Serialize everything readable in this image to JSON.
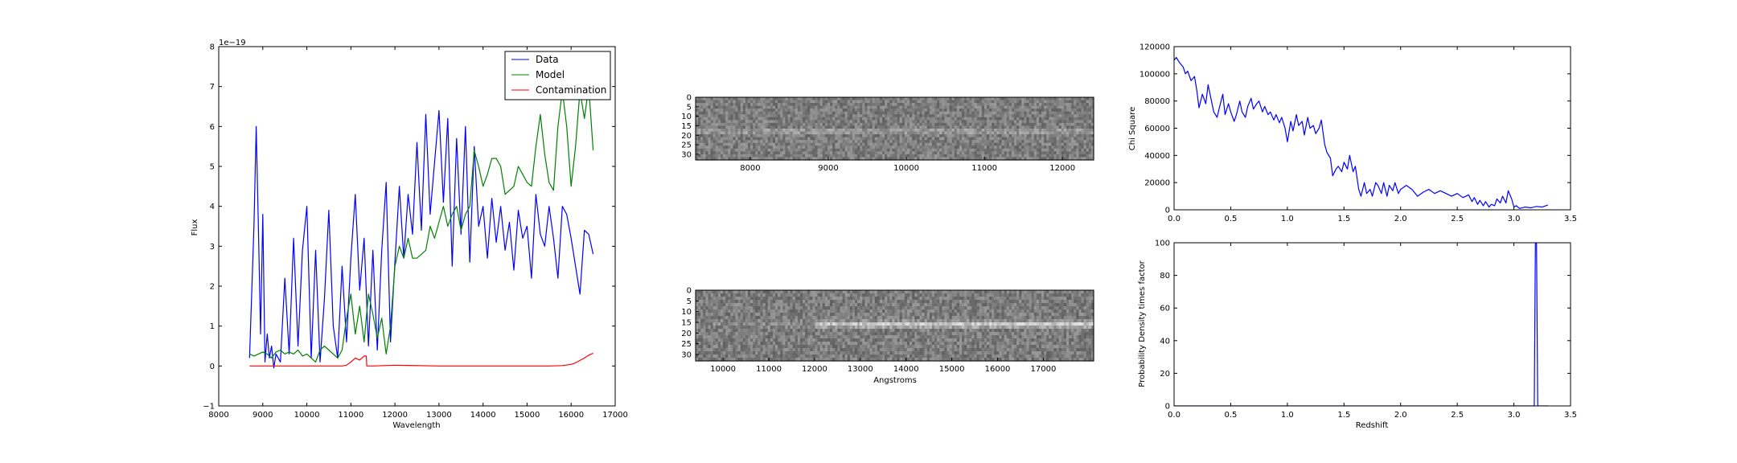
{
  "chart_data": [
    {
      "id": "spectrum",
      "type": "line",
      "xlabel": "Wavelength",
      "ylabel": "Flux",
      "offset_text": "1e−19",
      "xlim": [
        8000,
        17000
      ],
      "ylim": [
        -1,
        8
      ],
      "xticks": [
        8000,
        9000,
        10000,
        11000,
        12000,
        13000,
        14000,
        15000,
        16000,
        17000
      ],
      "yticks": [
        -1,
        0,
        1,
        2,
        3,
        4,
        5,
        6,
        7,
        8
      ],
      "legend": {
        "position": "top-right",
        "entries": [
          "Data",
          "Model",
          "Contamination"
        ]
      },
      "series": [
        {
          "name": "Data",
          "color": "#0000ff",
          "x": [
            8700,
            8800,
            8850,
            8900,
            8950,
            9000,
            9050,
            9100,
            9150,
            9200,
            9250,
            9300,
            9400,
            9500,
            9600,
            9700,
            9800,
            9900,
            10000,
            10100,
            10200,
            10300,
            10400,
            10500,
            10600,
            10700,
            10800,
            10900,
            11000,
            11100,
            11200,
            11300,
            11400,
            11500,
            11600,
            11700,
            11800,
            11900,
            12000,
            12100,
            12200,
            12300,
            12400,
            12500,
            12600,
            12700,
            12800,
            12900,
            13000,
            13100,
            13200,
            13300,
            13400,
            13500,
            13600,
            13700,
            13800,
            13900,
            14000,
            14100,
            14200,
            14300,
            14400,
            14500,
            14600,
            14700,
            14800,
            14900,
            15000,
            15100,
            15200,
            15300,
            15400,
            15500,
            15600,
            15700,
            15800,
            15900,
            16000,
            16100,
            16200,
            16300,
            16400,
            16500
          ],
          "y": [
            0.2,
            3.5,
            6.0,
            3.5,
            0.8,
            3.8,
            0.1,
            0.8,
            0.2,
            0.5,
            -0.05,
            0.3,
            0.1,
            2.2,
            0.3,
            3.2,
            0.5,
            2.9,
            4.0,
            0.2,
            2.9,
            0.1,
            1.7,
            3.9,
            1.0,
            0.2,
            2.5,
            0.6,
            2.7,
            4.3,
            1.9,
            3.2,
            0.5,
            2.9,
            0.4,
            2.9,
            4.6,
            0.6,
            2.6,
            4.5,
            2.7,
            4.3,
            3.3,
            5.6,
            3.4,
            6.3,
            3.8,
            5.1,
            6.4,
            4.1,
            6.2,
            2.5,
            5.7,
            3.3,
            6.0,
            2.6,
            5.5,
            3.5,
            4.0,
            2.7,
            4.2,
            3.1,
            4.0,
            2.9,
            3.6,
            2.4,
            3.9,
            3.2,
            3.5,
            2.2,
            4.3,
            3.3,
            3.0,
            4.0,
            3.2,
            2.2,
            4.0,
            3.8,
            3.2,
            2.5,
            1.8,
            3.4,
            3.3,
            2.8
          ]
        },
        {
          "name": "Model",
          "color": "#008000",
          "x": [
            8700,
            8800,
            8900,
            9000,
            9100,
            9200,
            9300,
            9400,
            9500,
            9600,
            9700,
            9800,
            9900,
            10000,
            10100,
            10200,
            10300,
            10400,
            10500,
            10600,
            10700,
            10800,
            10900,
            11000,
            11100,
            11200,
            11300,
            11400,
            11500,
            11600,
            11700,
            11800,
            11900,
            12000,
            12100,
            12200,
            12300,
            12400,
            12500,
            12600,
            12700,
            12800,
            12900,
            13000,
            13100,
            13200,
            13300,
            13400,
            13500,
            13600,
            13700,
            13800,
            13900,
            14000,
            14100,
            14200,
            14300,
            14400,
            14500,
            14600,
            14700,
            14800,
            14900,
            15000,
            15100,
            15200,
            15300,
            15400,
            15500,
            15600,
            15700,
            15800,
            15900,
            16000,
            16100,
            16200,
            16300,
            16400,
            16500
          ],
          "y": [
            0.3,
            0.25,
            0.3,
            0.35,
            0.3,
            0.2,
            0.35,
            0.4,
            0.3,
            0.35,
            0.3,
            0.4,
            0.25,
            0.3,
            0.2,
            0.1,
            0.4,
            0.5,
            0.4,
            0.3,
            0.2,
            0.4,
            1.2,
            1.8,
            0.8,
            1.5,
            0.6,
            1.8,
            1.3,
            0.7,
            1.2,
            0.3,
            1.0,
            2.5,
            3.0,
            2.7,
            3.2,
            2.7,
            2.7,
            2.8,
            2.9,
            3.5,
            3.2,
            3.6,
            4.0,
            3.5,
            3.8,
            4.0,
            3.4,
            3.8,
            4.0,
            5.4,
            5.0,
            4.5,
            4.8,
            5.2,
            5.2,
            5.0,
            4.3,
            4.4,
            4.5,
            5.0,
            4.8,
            4.6,
            4.5,
            5.5,
            6.3,
            5.3,
            4.6,
            4.4,
            6.0,
            6.9,
            6.0,
            4.5,
            5.5,
            6.9,
            6.2,
            7.0,
            5.4
          ]
        },
        {
          "name": "Contamination",
          "color": "#ff0000",
          "x": [
            8700,
            9000,
            9500,
            10000,
            10500,
            10800,
            10900,
            11000,
            11100,
            11200,
            11300,
            11350,
            11360,
            11500,
            12000,
            13000,
            14000,
            15000,
            15500,
            15800,
            16000,
            16100,
            16200,
            16300,
            16400,
            16500
          ],
          "y": [
            0.0,
            0.0,
            0.0,
            0.0,
            0.0,
            0.0,
            0.02,
            0.1,
            0.2,
            0.15,
            0.25,
            0.25,
            0.0,
            0.0,
            0.02,
            0.0,
            0.0,
            0.0,
            0.0,
            0.01,
            0.04,
            0.08,
            0.14,
            0.2,
            0.27,
            0.32
          ]
        }
      ]
    },
    {
      "id": "spectrum_2d_top",
      "type": "heatmap",
      "xlim": [
        7300,
        12400
      ],
      "ylim": [
        33,
        0
      ],
      "xticks": [
        8000,
        9000,
        10000,
        11000,
        12000
      ],
      "yticks": [
        0,
        5,
        10,
        15,
        20,
        25,
        30
      ],
      "trace_row": 18
    },
    {
      "id": "spectrum_2d_bottom",
      "type": "heatmap",
      "xlabel": "Angstroms",
      "xlim": [
        9400,
        18100
      ],
      "ylim": [
        33,
        0
      ],
      "xticks": [
        10000,
        11000,
        12000,
        13000,
        14000,
        15000,
        16000,
        17000
      ],
      "yticks": [
        0,
        5,
        10,
        15,
        20,
        25,
        30
      ],
      "trace_row": 16,
      "trace_start": 12000
    },
    {
      "id": "chi_square",
      "type": "line",
      "ylabel": "Chi Square",
      "xlim": [
        0,
        3.5
      ],
      "ylim": [
        0,
        120000
      ],
      "xticks": [
        0.0,
        0.5,
        1.0,
        1.5,
        2.0,
        2.5,
        3.0,
        3.5
      ],
      "xticklabels": [
        "0.0",
        "0.5",
        "1.0",
        "1.5",
        "2.0",
        "2.5",
        "3.0",
        "3.5"
      ],
      "yticks": [
        0,
        20000,
        40000,
        60000,
        80000,
        100000,
        120000
      ],
      "series": [
        {
          "color": "#0000ff",
          "x": [
            0.0,
            0.02,
            0.05,
            0.08,
            0.1,
            0.12,
            0.15,
            0.18,
            0.2,
            0.22,
            0.25,
            0.28,
            0.3,
            0.33,
            0.35,
            0.38,
            0.4,
            0.43,
            0.45,
            0.48,
            0.5,
            0.53,
            0.55,
            0.58,
            0.6,
            0.63,
            0.65,
            0.68,
            0.7,
            0.73,
            0.75,
            0.78,
            0.8,
            0.83,
            0.85,
            0.88,
            0.9,
            0.93,
            0.95,
            0.98,
            1.0,
            1.03,
            1.05,
            1.08,
            1.1,
            1.13,
            1.15,
            1.18,
            1.2,
            1.23,
            1.25,
            1.28,
            1.3,
            1.33,
            1.35,
            1.38,
            1.4,
            1.43,
            1.45,
            1.48,
            1.5,
            1.53,
            1.55,
            1.58,
            1.6,
            1.63,
            1.65,
            1.68,
            1.7,
            1.73,
            1.75,
            1.78,
            1.8,
            1.83,
            1.85,
            1.88,
            1.9,
            1.93,
            1.95,
            1.98,
            2.0,
            2.05,
            2.1,
            2.15,
            2.2,
            2.25,
            2.3,
            2.35,
            2.4,
            2.45,
            2.5,
            2.55,
            2.6,
            2.63,
            2.65,
            2.68,
            2.7,
            2.73,
            2.75,
            2.78,
            2.8,
            2.83,
            2.85,
            2.88,
            2.9,
            2.93,
            2.95,
            2.98,
            3.0,
            3.02,
            3.05,
            3.1,
            3.15,
            3.2,
            3.25,
            3.3
          ],
          "y": [
            110000,
            112000,
            108000,
            105000,
            100000,
            102000,
            95000,
            98000,
            88000,
            75000,
            85000,
            78000,
            92000,
            80000,
            72000,
            68000,
            75000,
            85000,
            70000,
            78000,
            72000,
            65000,
            70000,
            80000,
            72000,
            68000,
            76000,
            82000,
            74000,
            78000,
            80000,
            72000,
            76000,
            70000,
            72000,
            66000,
            70000,
            64000,
            68000,
            60000,
            50000,
            65000,
            58000,
            70000,
            62000,
            65000,
            55000,
            68000,
            60000,
            62000,
            56000,
            60000,
            66000,
            48000,
            42000,
            38000,
            25000,
            30000,
            32000,
            28000,
            35000,
            30000,
            40000,
            28000,
            32000,
            15000,
            10000,
            20000,
            12000,
            15000,
            10000,
            20000,
            18000,
            12000,
            20000,
            10000,
            18000,
            14000,
            20000,
            12000,
            15000,
            18000,
            15000,
            10000,
            13000,
            15000,
            12000,
            14000,
            12000,
            10000,
            12000,
            9000,
            11000,
            6000,
            9000,
            4000,
            7000,
            3000,
            6000,
            2000,
            4000,
            3000,
            8000,
            5000,
            10000,
            5000,
            14000,
            8000,
            2000,
            3000,
            1000,
            2000,
            1500,
            2500,
            2000,
            3500
          ]
        }
      ]
    },
    {
      "id": "probability",
      "type": "line",
      "xlabel": "Redshift",
      "ylabel": "Probability Density times factor",
      "xlim": [
        0,
        3.5
      ],
      "ylim": [
        0,
        100
      ],
      "xticks": [
        0.0,
        0.5,
        1.0,
        1.5,
        2.0,
        2.5,
        3.0,
        3.5
      ],
      "xticklabels": [
        "0.0",
        "0.5",
        "1.0",
        "1.5",
        "2.0",
        "2.5",
        "3.0",
        "3.5"
      ],
      "yticks": [
        0,
        20,
        40,
        60,
        80,
        100
      ],
      "series": [
        {
          "color": "#0000ff",
          "x": [
            0.0,
            3.17,
            3.18,
            3.19,
            3.2,
            3.21,
            3.22,
            3.3
          ],
          "y": [
            0,
            0,
            0,
            100,
            100,
            0,
            0,
            0
          ]
        }
      ]
    }
  ]
}
